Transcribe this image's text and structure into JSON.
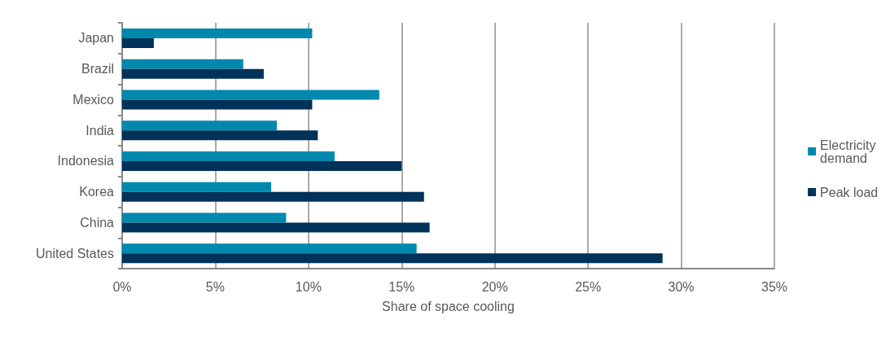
{
  "chart_data": {
    "type": "bar",
    "orientation": "horizontal",
    "xlabel": "Share of space cooling",
    "categories": [
      "Japan",
      "Brazil",
      "Mexico",
      "India",
      "Indonesia",
      "Korea",
      "China",
      "United States"
    ],
    "series": [
      {
        "name": "Electricity demand",
        "color": "#0089ad",
        "values": [
          10.2,
          6.5,
          13.8,
          8.3,
          11.4,
          8.0,
          8.8,
          15.8
        ]
      },
      {
        "name": "Peak load",
        "color": "#00325a",
        "values": [
          1.7,
          7.6,
          10.2,
          10.5,
          15.0,
          16.2,
          16.5,
          29.0
        ]
      }
    ],
    "xlim": [
      0,
      35
    ],
    "xticks": [
      {
        "value": 0,
        "label": "0%"
      },
      {
        "value": 5,
        "label": "5%"
      },
      {
        "value": 10,
        "label": "10%"
      },
      {
        "value": 15,
        "label": "15%"
      },
      {
        "value": 20,
        "label": "20%"
      },
      {
        "value": 25,
        "label": "25%"
      },
      {
        "value": 30,
        "label": "30%"
      },
      {
        "value": 35,
        "label": "35%"
      }
    ],
    "grid": "x",
    "legend": "right"
  }
}
